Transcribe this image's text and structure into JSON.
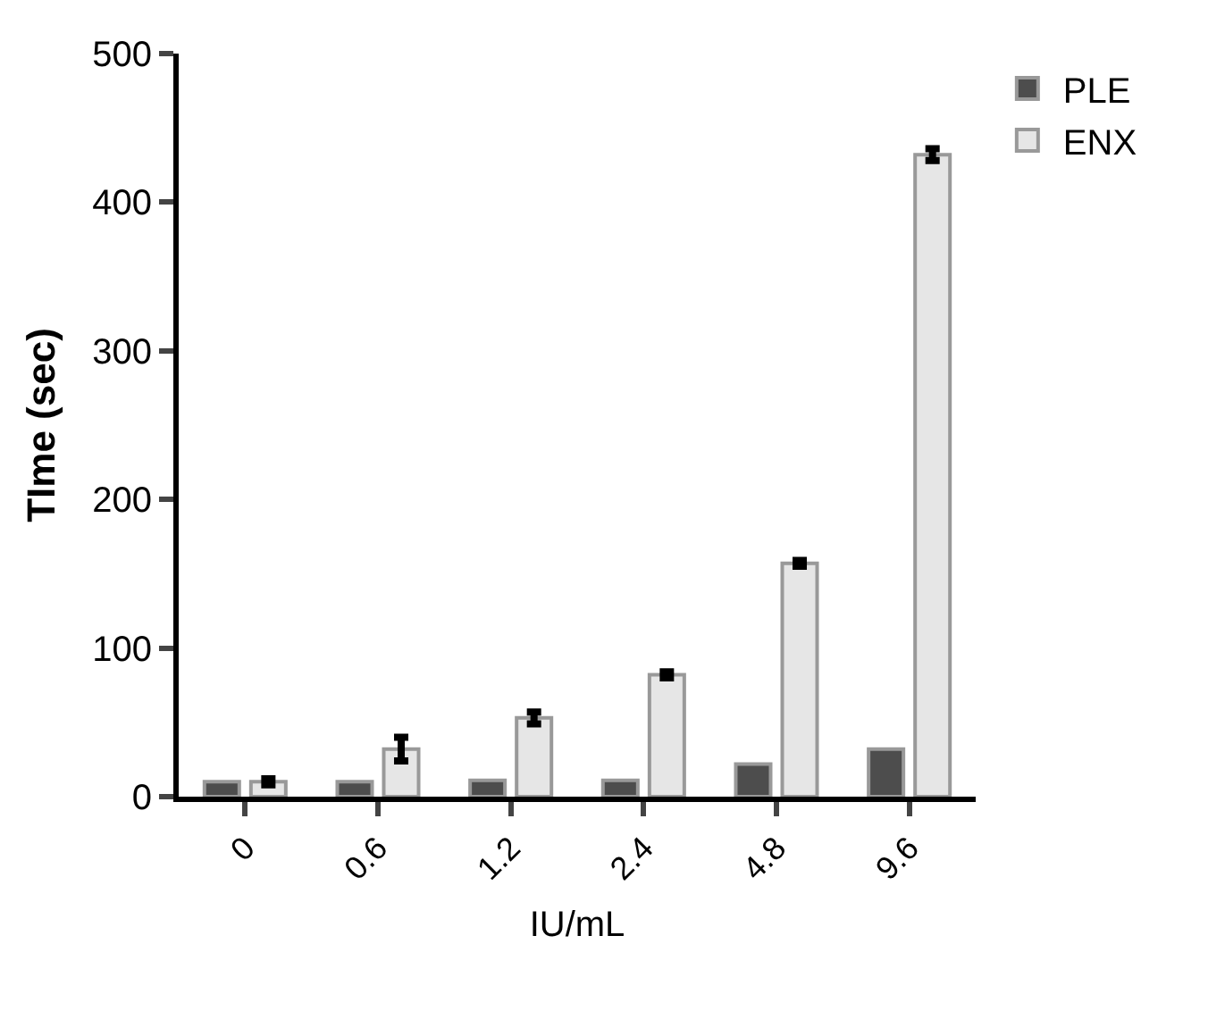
{
  "chart_data": {
    "type": "bar",
    "xlabel": "IU/mL",
    "ylabel": "TIme (sec)",
    "categories": [
      "0",
      "0.6",
      "1.2",
      "2.4",
      "4.8",
      "9.6"
    ],
    "series": [
      {
        "name": "PLE",
        "color": "#4d4d4d",
        "values": [
          10,
          10,
          11,
          11,
          22,
          32
        ]
      },
      {
        "name": "ENX",
        "color": "#e6e6e6",
        "values": [
          10,
          32,
          53,
          82,
          157,
          432
        ],
        "errors": [
          2,
          8,
          4,
          2,
          2,
          4
        ]
      }
    ],
    "ylim": [
      0,
      500
    ],
    "yticks": [
      0,
      100,
      200,
      300,
      400,
      500
    ],
    "legend": "top right"
  }
}
